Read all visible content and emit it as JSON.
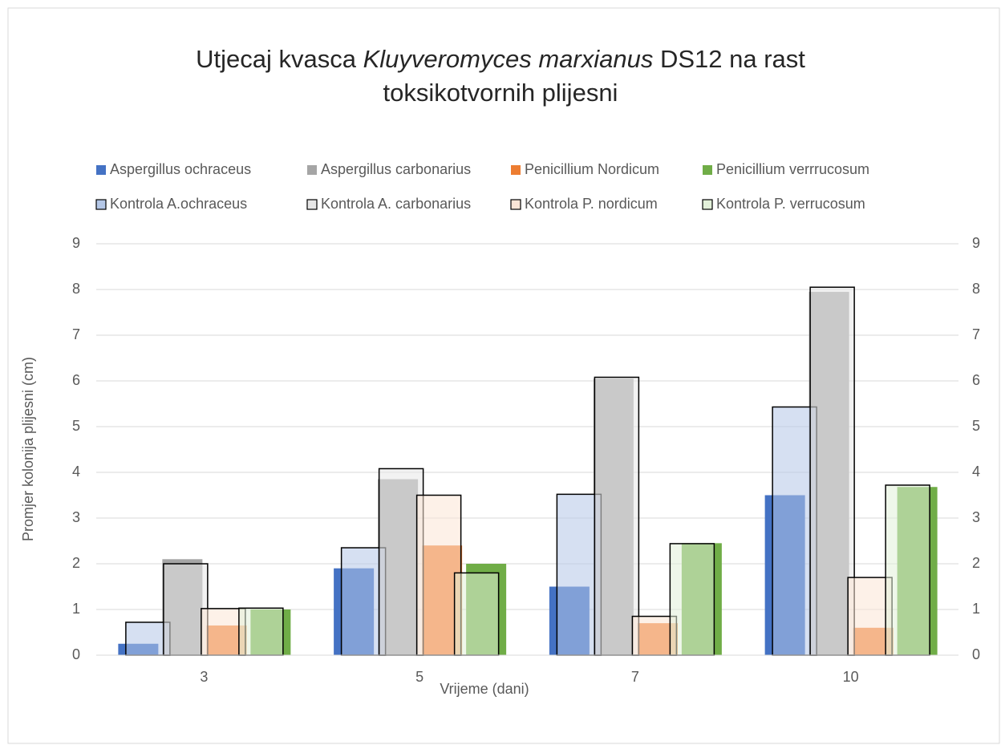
{
  "chart_data": {
    "type": "bar",
    "title": [
      "Utjecaj kvasca ",
      "Kluyveromyces marxianus",
      " DS12 na rast",
      "toksikotvornih plijesni"
    ],
    "x_label": "Vrijeme (dani)",
    "y_label": "Promjer kolonija plijesni (cm)",
    "categories": [
      "3",
      "5",
      "7",
      "10"
    ],
    "ylim": [
      0,
      9
    ],
    "yticks": [
      0,
      1,
      2,
      3,
      4,
      5,
      6,
      7,
      8,
      9
    ],
    "y2lim": [
      0,
      9
    ],
    "y2ticks": [
      0,
      1,
      2,
      3,
      4,
      5,
      6,
      7,
      8,
      9
    ],
    "grid": true,
    "legend": "top",
    "series": [
      {
        "name": "Aspergillus ochraceus",
        "color": "#4472c4",
        "values": [
          0.25,
          1.9,
          1.5,
          3.5
        ]
      },
      {
        "name": "Aspergillus carbonarius",
        "color": "#a5a5a5",
        "values": [
          2.1,
          3.85,
          6.05,
          7.95
        ]
      },
      {
        "name": "Penicillium Nordicum",
        "color": "#ed7d31",
        "values": [
          0.65,
          2.4,
          0.7,
          0.6
        ]
      },
      {
        "name": "Penicillium verrrucosum",
        "color": "#70ad47",
        "values": [
          1.0,
          2.0,
          2.45,
          3.68
        ]
      },
      {
        "name": "Kontrola A.ochraceus",
        "color": "#b4c7e7",
        "axis": "y2",
        "values": [
          0.72,
          2.35,
          3.52,
          5.43
        ]
      },
      {
        "name": "Kontrola A. carbonarius",
        "color": "#e7e7e7",
        "axis": "y2",
        "values": [
          2.0,
          4.08,
          6.08,
          8.05
        ]
      },
      {
        "name": "Kontrola P. nordicum",
        "color": "#fbe5d6",
        "axis": "y2",
        "values": [
          1.02,
          3.5,
          0.85,
          1.7
        ]
      },
      {
        "name": "Kontrola P. verrucosum",
        "color": "#e2f0d9",
        "axis": "y2",
        "values": [
          1.03,
          1.8,
          2.44,
          3.72
        ]
      }
    ]
  }
}
